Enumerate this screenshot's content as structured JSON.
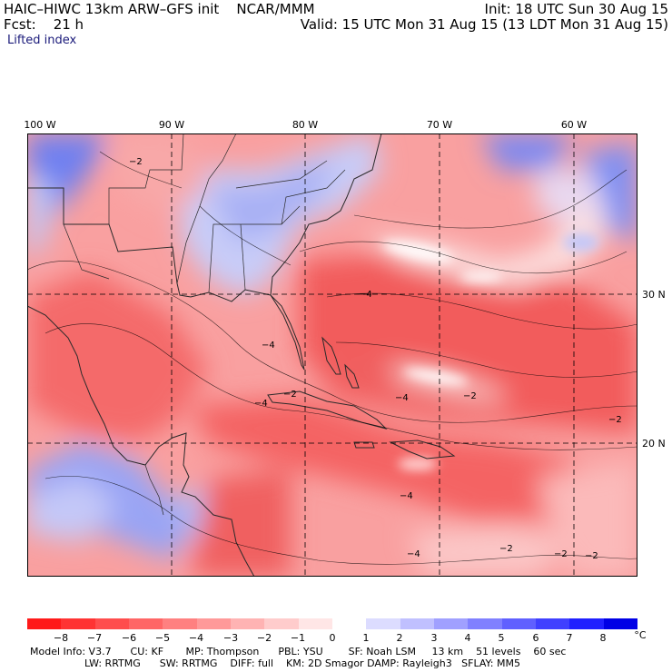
{
  "header": {
    "model_line": "HAIC–HIWC 13km ARW–GFS init    NCAR/MMM",
    "init": "Init: 18 UTC Sun 30 Aug 15",
    "fcst": "Fcst:    21 h",
    "valid": "Valid: 15 UTC Mon 31 Aug 15 (13 LDT Mon 31 Aug 15)",
    "field": "Lifted index"
  },
  "map": {
    "lon_labels": [
      "100 W",
      "90 W",
      "80 W",
      "70 W",
      "60 W"
    ],
    "lat_labels": [
      "30 N",
      "20 N"
    ],
    "contour_labels": [
      "−2",
      "−4",
      "−2",
      "−4",
      "−4",
      "−2",
      "−4",
      "−2",
      "−4",
      "−2",
      "−2",
      "−4",
      "−2"
    ]
  },
  "colorbar": {
    "labels": [
      "−8",
      "−7",
      "−6",
      "−5",
      "−4",
      "−3",
      "−2",
      "−1",
      "0",
      "1",
      "2",
      "3",
      "4",
      "5",
      "6",
      "7",
      "8"
    ],
    "unit": "°C",
    "colors": [
      "#ff1a1a",
      "#ff3333",
      "#ff4d4d",
      "#ff6666",
      "#ff8080",
      "#ff9999",
      "#ffb3b3",
      "#ffcccc",
      "#ffe6e6",
      "#ffffff",
      "#dcdcff",
      "#c0c0ff",
      "#a0a0ff",
      "#8080ff",
      "#6060ff",
      "#4040ff",
      "#2020ff",
      "#0000e6"
    ]
  },
  "model_info": {
    "line1": "Model Info: V3.7      CU: KF       MP: Thompson      PBL: YSU        SF: Noah LSM     13 km    51 levels    60 sec",
    "line2": "LW: RRTMG      SW: RRTMG    DIFF: full    KM: 2D Smagor DAMP: Rayleigh3   SFLAY: MM5"
  }
}
